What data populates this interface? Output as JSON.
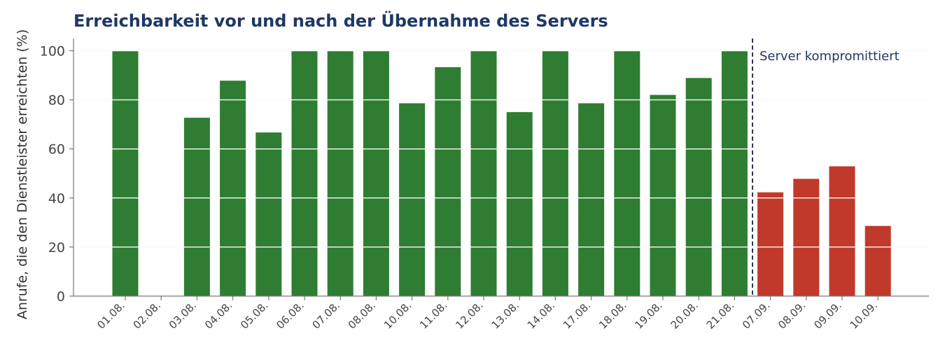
{
  "chart_data": {
    "type": "bar",
    "title": "Erreichbarkeit vor und nach der Übernahme des Servers",
    "xlabel": "",
    "ylabel": "Anrufe, die den Dienstleister erreichten (%)",
    "ylim": [
      0,
      105
    ],
    "yticks": [
      0,
      20,
      40,
      60,
      80,
      100
    ],
    "grid": true,
    "categories": [
      "01.08.",
      "02.08.",
      "03.08.",
      "04.08.",
      "05.08.",
      "06.08.",
      "07.08.",
      "08.08.",
      "10.08.",
      "11.08.",
      "12.08.",
      "13.08.",
      "14.08.",
      "17.08.",
      "18.08.",
      "19.08.",
      "20.08.",
      "21.08.",
      "07.09.",
      "08.09.",
      "09.09.",
      "10.09."
    ],
    "values": [
      100,
      0,
      72.7,
      87.8,
      66.7,
      100,
      100,
      100,
      78.6,
      93.3,
      100,
      75,
      100,
      78.6,
      100,
      82,
      88.9,
      100,
      42.3,
      47.8,
      52.9,
      28.6
    ],
    "phase_split_after": "21.08.",
    "colors": {
      "before": "#2e7d32",
      "after": "#c0392b",
      "title": "#1f3864",
      "marker_line": "#2d3748"
    },
    "annotation": "Server kompromittiert"
  }
}
